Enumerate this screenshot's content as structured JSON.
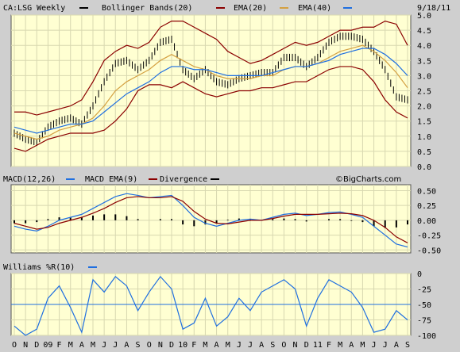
{
  "chart_data": [
    {
      "type": "line",
      "panel": "price",
      "title": "CA:LSG Weekly",
      "date_stamp": "9/18/11",
      "legend": [
        {
          "label": "CA:LSG Weekly",
          "color": "#000000"
        },
        {
          "label": "Bollinger Bands(20)",
          "color": "#8b0000"
        },
        {
          "label": "EMA(20)",
          "color": "#d4a040"
        },
        {
          "label": "EMA(40)",
          "color": "#1f6fe0"
        }
      ],
      "ylim": [
        0,
        5
      ],
      "y_ticks": [
        "0.0",
        "0.5",
        "1.0",
        "1.5",
        "2.0",
        "2.5",
        "3.0",
        "3.5",
        "4.0",
        "4.5",
        "5.0"
      ],
      "grid": true,
      "x": [
        "Oct 08",
        "Nov 08",
        "Dec 08",
        "Jan 09",
        "Feb 09",
        "Mar 09",
        "Apr 09",
        "May 09",
        "Jun 09",
        "Jul 09",
        "Aug 09",
        "Sep 09",
        "Oct 09",
        "Nov 09",
        "Dec 09",
        "Jan 10",
        "Feb 10",
        "Mar 10",
        "Apr 10",
        "May 10",
        "Jun 10",
        "Jul 10",
        "Aug 10",
        "Sep 10",
        "Oct 10",
        "Nov 10",
        "Dec 10",
        "Jan 11",
        "Feb 11",
        "Mar 11",
        "Apr 11",
        "May 11",
        "Jun 11",
        "Jul 11",
        "Aug 11",
        "Sep 11"
      ],
      "series": [
        {
          "name": "CA:LSG Weekly",
          "values": [
            1.1,
            0.9,
            0.8,
            1.3,
            1.5,
            1.6,
            1.4,
            2.0,
            2.8,
            3.4,
            3.5,
            3.2,
            3.5,
            4.1,
            4.2,
            3.2,
            2.9,
            3.2,
            2.8,
            2.7,
            2.9,
            3.0,
            3.1,
            3.1,
            3.6,
            3.6,
            3.3,
            3.6,
            4.1,
            4.3,
            4.3,
            4.2,
            3.8,
            3.2,
            2.3,
            2.2
          ]
        },
        {
          "name": "Bollinger Bands(20)",
          "values": [
            1.8,
            1.8,
            1.7,
            1.8,
            1.9,
            2.0,
            2.2,
            2.8,
            3.5,
            3.8,
            4.0,
            3.9,
            4.1,
            4.6,
            4.8,
            4.8,
            4.6,
            4.4,
            4.2,
            3.8,
            3.6,
            3.4,
            3.5,
            3.7,
            3.9,
            4.1,
            4.0,
            4.1,
            4.3,
            4.5,
            4.5,
            4.6,
            4.6,
            4.8,
            4.7,
            4.0
          ]
        },
        {
          "name": "Bollinger Bands(20) lower",
          "values": [
            0.6,
            0.5,
            0.7,
            0.9,
            1.0,
            1.1,
            1.1,
            1.1,
            1.2,
            1.5,
            1.9,
            2.5,
            2.7,
            2.7,
            2.6,
            2.8,
            2.6,
            2.4,
            2.3,
            2.4,
            2.5,
            2.5,
            2.6,
            2.6,
            2.7,
            2.8,
            2.8,
            3.0,
            3.2,
            3.3,
            3.3,
            3.2,
            2.8,
            2.2,
            1.8,
            1.6
          ]
        },
        {
          "name": "EMA(20)",
          "values": [
            1.1,
            1.0,
            0.9,
            1.0,
            1.2,
            1.3,
            1.4,
            1.6,
            2.0,
            2.5,
            2.8,
            3.0,
            3.2,
            3.5,
            3.7,
            3.5,
            3.3,
            3.2,
            3.0,
            2.9,
            2.9,
            2.9,
            3.0,
            3.0,
            3.2,
            3.3,
            3.3,
            3.4,
            3.6,
            3.8,
            3.9,
            4.0,
            3.8,
            3.5,
            3.1,
            2.6
          ]
        },
        {
          "name": "EMA(40)",
          "values": [
            1.3,
            1.2,
            1.1,
            1.2,
            1.3,
            1.4,
            1.4,
            1.5,
            1.8,
            2.1,
            2.4,
            2.6,
            2.8,
            3.1,
            3.3,
            3.3,
            3.2,
            3.2,
            3.1,
            3.0,
            3.0,
            3.0,
            3.0,
            3.1,
            3.2,
            3.3,
            3.3,
            3.4,
            3.5,
            3.7,
            3.8,
            3.9,
            3.9,
            3.7,
            3.4,
            3.0
          ]
        }
      ]
    },
    {
      "type": "line",
      "panel": "macd",
      "watermark": "©BigCharts.com",
      "legend": [
        {
          "label": "MACD(12,26)",
          "color": "#1f6fe0"
        },
        {
          "label": "MACD EMA(9)",
          "color": "#8b0000"
        },
        {
          "label": "Divergence",
          "color": "#000000"
        }
      ],
      "ylim": [
        -0.55,
        0.6
      ],
      "y_ticks": [
        "0.50",
        "0.25",
        "0.00",
        "-0.25",
        "-0.50"
      ],
      "series": [
        {
          "name": "MACD(12,26)",
          "values": [
            -0.1,
            -0.15,
            -0.18,
            -0.1,
            0.0,
            0.05,
            0.1,
            0.2,
            0.3,
            0.4,
            0.45,
            0.42,
            0.38,
            0.4,
            0.42,
            0.25,
            0.05,
            -0.05,
            -0.1,
            -0.05,
            0.0,
            0.02,
            0.0,
            0.05,
            0.1,
            0.12,
            0.08,
            0.1,
            0.13,
            0.14,
            0.1,
            0.05,
            -0.1,
            -0.25,
            -0.4,
            -0.45
          ]
        },
        {
          "name": "MACD EMA(9)",
          "values": [
            -0.05,
            -0.1,
            -0.15,
            -0.12,
            -0.05,
            0.0,
            0.05,
            0.12,
            0.2,
            0.3,
            0.38,
            0.4,
            0.38,
            0.38,
            0.4,
            0.32,
            0.15,
            0.02,
            -0.05,
            -0.06,
            -0.03,
            0.0,
            0.0,
            0.03,
            0.07,
            0.1,
            0.1,
            0.1,
            0.11,
            0.12,
            0.11,
            0.08,
            0.0,
            -0.12,
            -0.28,
            -0.38
          ]
        },
        {
          "name": "Divergence",
          "values": [
            -0.05,
            -0.05,
            -0.03,
            0.02,
            0.05,
            0.05,
            0.05,
            0.08,
            0.1,
            0.1,
            0.07,
            0.02,
            0.0,
            0.02,
            0.02,
            -0.07,
            -0.1,
            -0.07,
            -0.05,
            0.01,
            0.03,
            0.02,
            0.0,
            0.02,
            0.03,
            0.02,
            -0.02,
            0.0,
            0.02,
            0.02,
            -0.01,
            -0.03,
            -0.1,
            -0.13,
            -0.12,
            -0.07
          ]
        }
      ]
    },
    {
      "type": "line",
      "panel": "williams",
      "legend": [
        {
          "label": "Williams %R(10)",
          "color": "#1f6fe0"
        }
      ],
      "ylim": [
        -100,
        0
      ],
      "y_ticks": [
        "0",
        "-25",
        "-50",
        "-75",
        "-100"
      ],
      "reference_line": -50,
      "series": [
        {
          "name": "Williams %R(10)",
          "values": [
            -85,
            -100,
            -90,
            -40,
            -20,
            -55,
            -95,
            -10,
            -30,
            -5,
            -20,
            -60,
            -30,
            -5,
            -25,
            -90,
            -80,
            -40,
            -85,
            -70,
            -40,
            -60,
            -30,
            -20,
            -10,
            -25,
            -85,
            -40,
            -10,
            -20,
            -30,
            -55,
            -95,
            -90,
            -60,
            -75
          ]
        }
      ]
    }
  ],
  "x_axis_labels": [
    "O",
    "N",
    "D",
    "09",
    "F",
    "M",
    "A",
    "M",
    "J",
    "J",
    "A",
    "S",
    "O",
    "N",
    "D",
    "10",
    "F",
    "M",
    "A",
    "M",
    "J",
    "J",
    "A",
    "S",
    "O",
    "N",
    "D",
    "11",
    "F",
    "M",
    "A",
    "M",
    "J",
    "J",
    "A",
    "S"
  ]
}
